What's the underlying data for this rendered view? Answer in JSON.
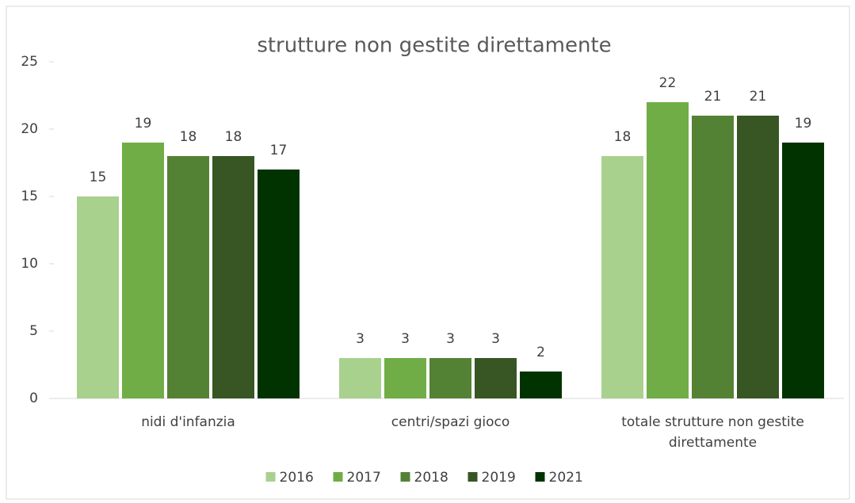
{
  "chart_data": {
    "type": "bar",
    "title": "strutture non gestite direttamente",
    "categories": [
      "nidi d'infanzia",
      "centri/spazi gioco",
      "totale strutture non gestite direttamente"
    ],
    "series": [
      {
        "name": "2016",
        "color": "#a9d18e",
        "values": [
          15,
          3,
          18
        ]
      },
      {
        "name": "2017",
        "color": "#70ad47",
        "values": [
          19,
          3,
          22
        ]
      },
      {
        "name": "2018",
        "color": "#548235",
        "values": [
          18,
          3,
          21
        ]
      },
      {
        "name": "2019",
        "color": "#375623",
        "values": [
          18,
          3,
          21
        ]
      },
      {
        "name": "2021",
        "color": "#003300",
        "values": [
          17,
          2,
          19
        ]
      }
    ],
    "ylim": [
      0,
      25
    ],
    "yticks": [
      0,
      5,
      10,
      15,
      20,
      25
    ],
    "grid": false,
    "legend": "bottom"
  }
}
